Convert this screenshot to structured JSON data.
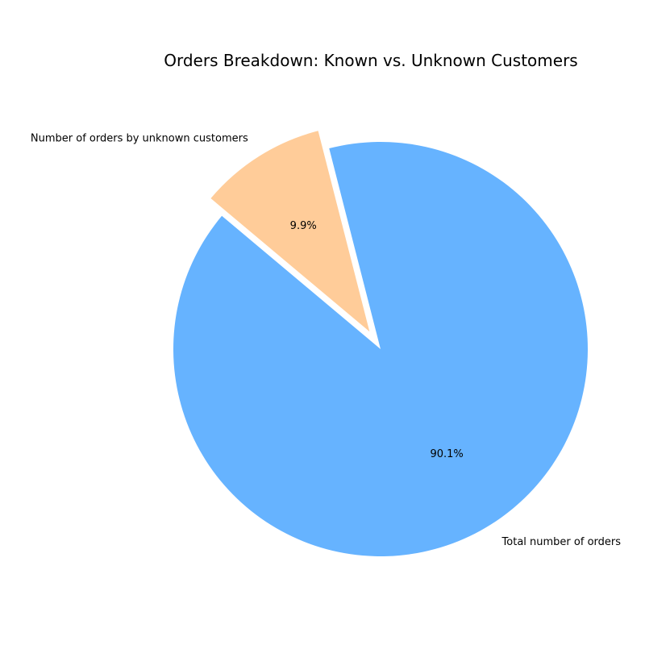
{
  "chart_data": {
    "type": "pie",
    "title": "Orders Breakdown: Known vs. Unknown Customers",
    "slices": [
      {
        "label": "Total number of orders",
        "value": 90.1,
        "pct_label": "90.1%",
        "color": "#66b3ff",
        "explode": 0
      },
      {
        "label": "Number of orders by unknown customers",
        "value": 9.9,
        "pct_label": "9.9%",
        "color": "#ffcc99",
        "explode": 0.1
      }
    ],
    "start_angle": 140,
    "counterclock": true,
    "legend": false
  }
}
